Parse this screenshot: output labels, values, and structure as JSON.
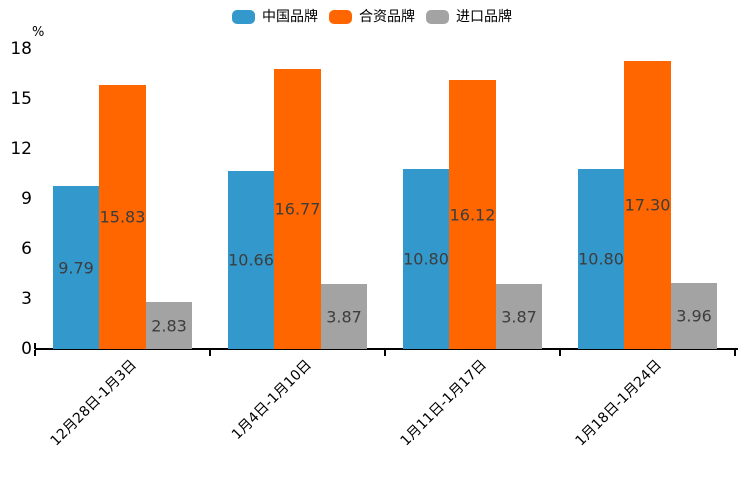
{
  "chart_data": {
    "type": "bar",
    "title": "",
    "unit_label": "%",
    "categories": [
      "12月28日-1月3日",
      "1月4日-1月10日",
      "1月11日-1月17日",
      "1月18日-1月24日"
    ],
    "series": [
      {
        "key": "china-brand",
        "name": "中国品牌",
        "color": "#3398CB",
        "values": [
          9.79,
          10.66,
          10.8,
          10.8
        ]
      },
      {
        "key": "joint-venture-brand",
        "name": "合资品牌",
        "color": "#FF6600",
        "values": [
          15.83,
          16.77,
          16.12,
          17.3
        ]
      },
      {
        "key": "import-brand",
        "name": "进口品牌",
        "color": "#A3A3A3",
        "values": [
          2.83,
          3.87,
          3.87,
          3.96
        ]
      }
    ],
    "value_labels": [
      [
        "9.79",
        "10.66",
        "10.80",
        "10.80"
      ],
      [
        "15.83",
        "16.77",
        "16.12",
        "17.30"
      ],
      [
        "2.83",
        "3.87",
        "3.87",
        "3.96"
      ]
    ],
    "value_label_decimals": 2,
    "ylim": [
      0,
      18
    ],
    "yticks": [
      0,
      3,
      6,
      9,
      12,
      15,
      18
    ],
    "grid": false,
    "legend_position": "top",
    "axis_color": "#000000",
    "value_label_color": "#3d3d3d",
    "background_color": "#ffffff"
  }
}
